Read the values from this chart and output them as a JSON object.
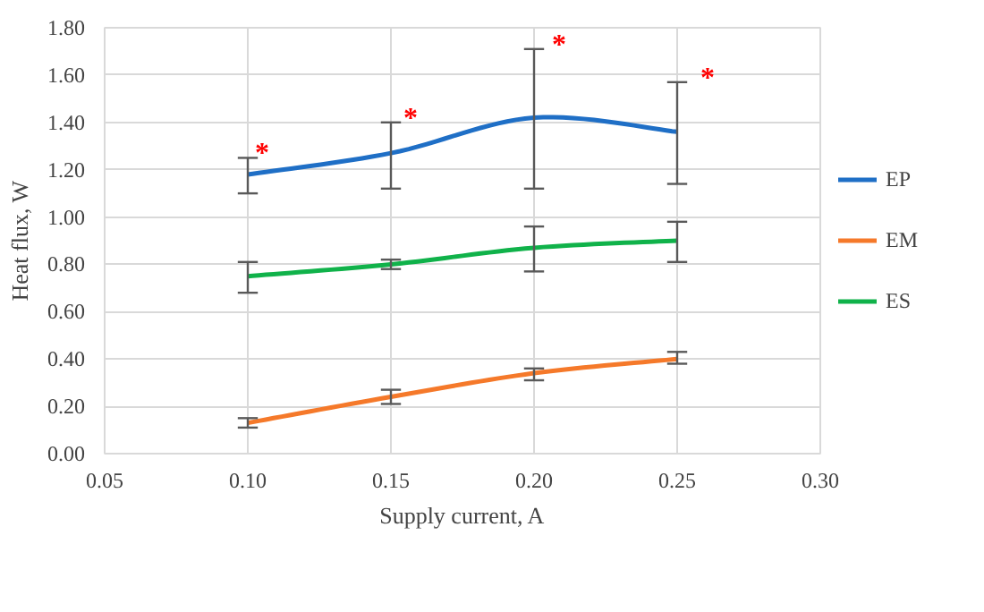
{
  "chart_data": {
    "type": "line",
    "xlabel": "Supply current, A",
    "ylabel": "Heat flux, W",
    "x": [
      0.1,
      0.15,
      0.2,
      0.25
    ],
    "series": [
      {
        "name": "EP",
        "color": "#1f6fc6",
        "values": [
          1.18,
          1.27,
          1.42,
          1.36
        ],
        "errors": [
          [
            1.1,
            1.25
          ],
          [
            1.12,
            1.4
          ],
          [
            1.12,
            1.71
          ],
          [
            1.14,
            1.57
          ]
        ]
      },
      {
        "name": "EM",
        "color": "#f5792a",
        "values": [
          0.13,
          0.24,
          0.34,
          0.4
        ],
        "errors": [
          [
            0.11,
            0.15
          ],
          [
            0.21,
            0.27
          ],
          [
            0.31,
            0.36
          ],
          [
            0.38,
            0.43
          ]
        ]
      },
      {
        "name": "ES",
        "color": "#10b24a",
        "values": [
          0.75,
          0.8,
          0.87,
          0.9
        ],
        "errors": [
          [
            0.68,
            0.81
          ],
          [
            0.78,
            0.82
          ],
          [
            0.77,
            0.96
          ],
          [
            0.81,
            0.98
          ]
        ]
      }
    ],
    "annotations": [
      "*",
      "*",
      "*",
      "*"
    ],
    "xlim": [
      0.05,
      0.3
    ],
    "xticks": [
      {
        "value": 0.05,
        "label": "0.05"
      },
      {
        "value": 0.1,
        "label": "0.10"
      },
      {
        "value": 0.15,
        "label": "0.15"
      },
      {
        "value": 0.2,
        "label": "0.20"
      },
      {
        "value": 0.25,
        "label": "0.25"
      },
      {
        "value": 0.3,
        "label": "0.30"
      }
    ],
    "ylim": [
      0,
      1.8
    ],
    "yticks": [
      {
        "value": 0,
        "label": "0.00"
      },
      {
        "value": 0.2,
        "label": "0.20"
      },
      {
        "value": 0.4,
        "label": "0.40"
      },
      {
        "value": 0.6,
        "label": "0.60"
      },
      {
        "value": 0.8,
        "label": "0.80"
      },
      {
        "value": 1.0,
        "label": "1.00"
      },
      {
        "value": 1.2,
        "label": "1.20"
      },
      {
        "value": 1.4,
        "label": "1.40"
      },
      {
        "value": 1.6,
        "label": "1.60"
      },
      {
        "value": 1.8,
        "label": "1.80"
      }
    ],
    "grid": true,
    "legend": "right",
    "marker": "none",
    "line_style": "solid"
  }
}
